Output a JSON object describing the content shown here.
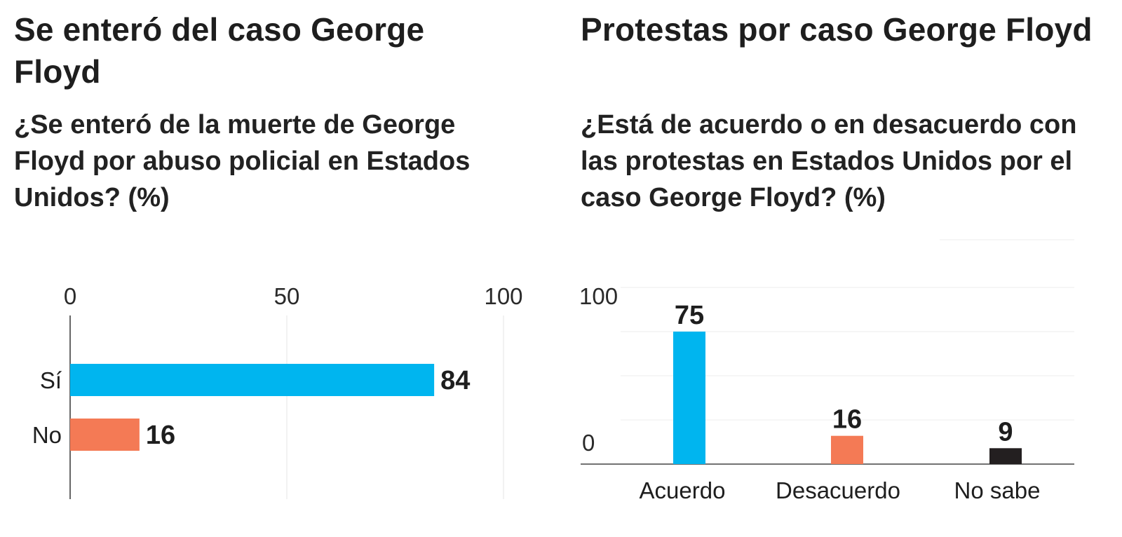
{
  "chart_data": [
    {
      "type": "bar",
      "orientation": "horizontal",
      "title": "Se enteró del caso George Floyd",
      "subtitle": "¿Se enteró de la muerte de George Floyd por abuso policial en Estados Unidos? (%)",
      "categories": [
        "Sí",
        "No"
      ],
      "values": [
        84,
        16
      ],
      "value_labels": [
        "84",
        "16"
      ],
      "colors": [
        "#00b5ef",
        "#f47a55"
      ],
      "xlim": [
        0,
        100
      ],
      "xticks": [
        0,
        50,
        100
      ],
      "xtick_labels": [
        "0",
        "50",
        "100"
      ],
      "xlabel": "",
      "ylabel": "",
      "grid": true
    },
    {
      "type": "bar",
      "orientation": "vertical",
      "title": "Protestas por caso George Floyd",
      "subtitle": "¿Está de acuerdo o en desacuerdo con las protestas en Estados Unidos por el caso George Floyd? (%)",
      "categories": [
        "Acuerdo",
        "Desacuerdo",
        "No sabe"
      ],
      "values": [
        75,
        16,
        9
      ],
      "value_labels": [
        "75",
        "16",
        "9"
      ],
      "colors": [
        "#00b5ef",
        "#f47a55",
        "#231f20"
      ],
      "ylim": [
        0,
        100
      ],
      "yticks": [
        0,
        100
      ],
      "ytick_labels": [
        "0",
        "100"
      ],
      "xlabel": "",
      "ylabel": "",
      "grid": true
    }
  ]
}
